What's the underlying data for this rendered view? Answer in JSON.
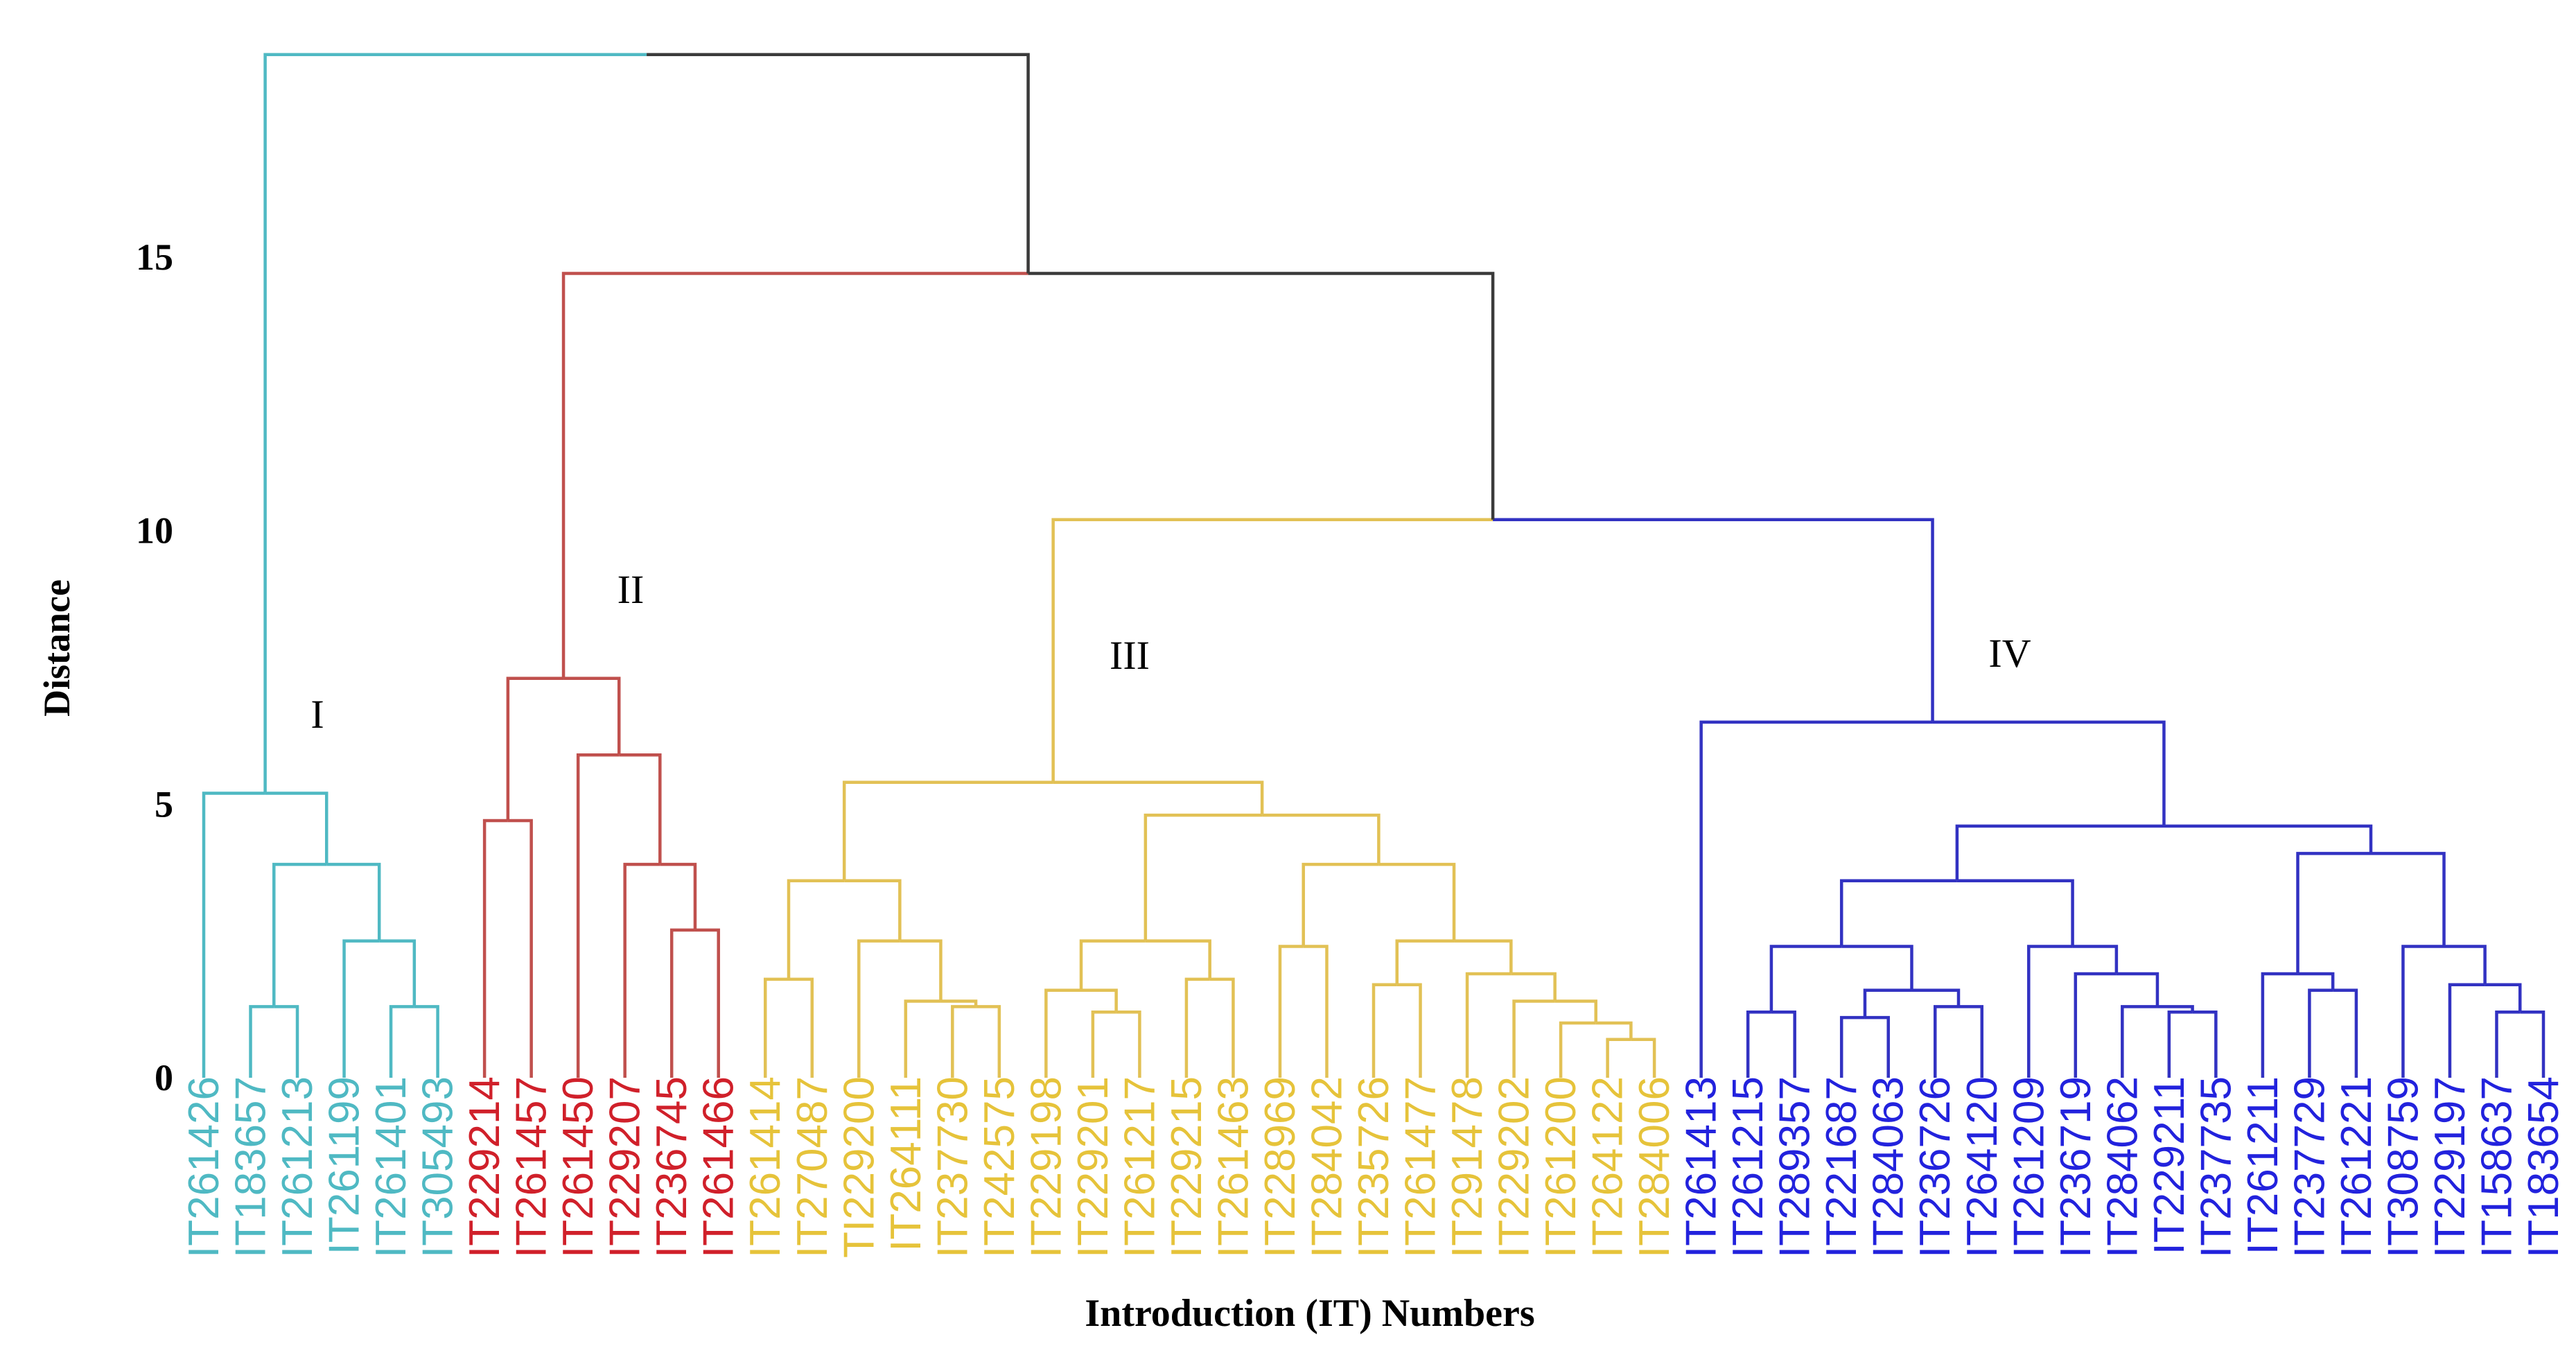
{
  "chart_data": {
    "type": "dendrogram",
    "title": "",
    "xlabel": "Introduction (IT) Numbers",
    "ylabel": "Distance",
    "yticks": [
      0,
      5,
      10,
      15
    ],
    "ylim": [
      0,
      18.9
    ],
    "colors": {
      "I": "#4fb9c3",
      "II": "#c0504d",
      "III": "#e2c155",
      "IV": "#3232c2",
      "root": "#3a3a3a",
      "leaf_I": "#4fb9c3",
      "leaf_II": "#d0202a",
      "leaf_III": "#e6c33a",
      "leaf_IV": "#2222dd"
    },
    "clusters": [
      {
        "name": "I",
        "label": "I",
        "leaves": [
          "IT261426",
          "IT183657",
          "IT261213",
          "IT261199",
          "IT261401",
          "IT305493"
        ]
      },
      {
        "name": "II",
        "label": "II",
        "leaves": [
          "IT229214",
          "IT261457",
          "IT261450",
          "IT229207",
          "IT236745",
          "IT261466"
        ]
      },
      {
        "name": "III",
        "label": "III",
        "leaves": [
          "IT261414",
          "IT270487",
          "TI229200",
          "IT264111",
          "IT237730",
          "IT242575",
          "IT229198",
          "IT229201",
          "IT261217",
          "IT229215",
          "IT261463",
          "IT228969",
          "IT284042",
          "IT235726",
          "IT261477",
          "IT291478",
          "IT229202",
          "IT261200",
          "IT264122",
          "IT284006"
        ]
      },
      {
        "name": "IV",
        "label": "IV",
        "leaves": [
          "IT261413",
          "IT261215",
          "IT289357",
          "IT221687",
          "IT284063",
          "IT236726",
          "IT264120",
          "IT261209",
          "IT236719",
          "IT284062",
          "IT229211",
          "IT237735",
          "IT261211",
          "IT237729",
          "IT261221",
          "IT308759",
          "IT229197",
          "IT158637",
          "IT183654"
        ]
      }
    ],
    "merges": [
      {
        "a": "IT183657",
        "b": "IT261213",
        "h": 1.3,
        "c": "I"
      },
      {
        "a": "IT261401",
        "b": "IT305493",
        "h": 1.3,
        "c": "I"
      },
      {
        "a": "IT261199",
        "b": "m2",
        "h": 2.5,
        "c": "I"
      },
      {
        "a": "m1",
        "b": "m3",
        "h": 3.9,
        "c": "I"
      },
      {
        "a": "IT261426",
        "b": "m4",
        "h": 5.2,
        "c": "I"
      },
      {
        "a": "IT229214",
        "b": "IT261457",
        "h": 4.7,
        "c": "II"
      },
      {
        "a": "IT236745",
        "b": "IT261466",
        "h": 2.7,
        "c": "II"
      },
      {
        "a": "IT229207",
        "b": "m7",
        "h": 3.9,
        "c": "II"
      },
      {
        "a": "IT261450",
        "b": "m8",
        "h": 5.9,
        "c": "II"
      },
      {
        "a": "m6",
        "b": "m9",
        "h": 7.3,
        "c": "II"
      },
      {
        "a": "IT261414",
        "b": "IT270487",
        "h": 1.8,
        "c": "III"
      },
      {
        "a": "IT237730",
        "b": "IT242575",
        "h": 1.3,
        "c": "III"
      },
      {
        "a": "IT264111",
        "b": "m12",
        "h": 1.4,
        "c": "III"
      },
      {
        "a": "TI229200",
        "b": "m13",
        "h": 2.5,
        "c": "III"
      },
      {
        "a": "m11",
        "b": "m14",
        "h": 3.6,
        "c": "III"
      },
      {
        "a": "IT229201",
        "b": "IT261217",
        "h": 1.2,
        "c": "III"
      },
      {
        "a": "IT229198",
        "b": "m16",
        "h": 1.6,
        "c": "III"
      },
      {
        "a": "IT229215",
        "b": "IT261463",
        "h": 1.8,
        "c": "III"
      },
      {
        "a": "m17",
        "b": "m18",
        "h": 2.5,
        "c": "III"
      },
      {
        "a": "IT228969",
        "b": "IT284042",
        "h": 2.4,
        "c": "III"
      },
      {
        "a": "IT235726",
        "b": "IT261477",
        "h": 1.7,
        "c": "III"
      },
      {
        "a": "IT264122",
        "b": "IT284006",
        "h": 0.7,
        "c": "III"
      },
      {
        "a": "IT261200",
        "b": "m22",
        "h": 1.0,
        "c": "III"
      },
      {
        "a": "IT229202",
        "b": "m23",
        "h": 1.4,
        "c": "III"
      },
      {
        "a": "IT291478",
        "b": "m24",
        "h": 1.9,
        "c": "III"
      },
      {
        "a": "m21",
        "b": "m25",
        "h": 2.5,
        "c": "III"
      },
      {
        "a": "m20",
        "b": "m26",
        "h": 3.9,
        "c": "III"
      },
      {
        "a": "m19",
        "b": "m27",
        "h": 4.8,
        "c": "III"
      },
      {
        "a": "m15",
        "b": "m28",
        "h": 5.4,
        "c": "III"
      },
      {
        "a": "IT261215",
        "b": "IT289357",
        "h": 1.2,
        "c": "IV"
      },
      {
        "a": "IT221687",
        "b": "IT284063",
        "h": 1.1,
        "c": "IV"
      },
      {
        "a": "IT236726",
        "b": "IT264120",
        "h": 1.3,
        "c": "IV"
      },
      {
        "a": "m31",
        "b": "m32",
        "h": 1.6,
        "c": "IV"
      },
      {
        "a": "m30",
        "b": "m33",
        "h": 2.4,
        "c": "IV"
      },
      {
        "a": "IT229211",
        "b": "IT237735",
        "h": 1.2,
        "c": "IV"
      },
      {
        "a": "IT284062",
        "b": "m35",
        "h": 1.3,
        "c": "IV"
      },
      {
        "a": "IT236719",
        "b": "m36",
        "h": 1.9,
        "c": "IV"
      },
      {
        "a": "IT261209",
        "b": "m37",
        "h": 2.4,
        "c": "IV"
      },
      {
        "a": "m34",
        "b": "m38",
        "h": 3.6,
        "c": "IV"
      },
      {
        "a": "IT237729",
        "b": "IT261221",
        "h": 1.6,
        "c": "IV"
      },
      {
        "a": "IT261211",
        "b": "m40",
        "h": 1.9,
        "c": "IV"
      },
      {
        "a": "IT158637",
        "b": "IT183654",
        "h": 1.2,
        "c": "IV"
      },
      {
        "a": "IT229197",
        "b": "m42",
        "h": 1.7,
        "c": "IV"
      },
      {
        "a": "IT308759",
        "b": "m43",
        "h": 2.4,
        "c": "IV"
      },
      {
        "a": "m41",
        "b": "m44",
        "h": 4.1,
        "c": "IV"
      },
      {
        "a": "m39",
        "b": "m45",
        "h": 4.6,
        "c": "IV"
      },
      {
        "a": "IT261413",
        "b": "m46",
        "h": 6.5,
        "c": "IV"
      },
      {
        "a": "m29",
        "b": "m47",
        "h": 10.2,
        "c": "III|IV"
      },
      {
        "a": "m10",
        "b": "m48",
        "h": 14.7,
        "c": "II|root"
      },
      {
        "a": "m5",
        "b": "m49",
        "h": 18.7,
        "c": "I|root"
      }
    ]
  }
}
